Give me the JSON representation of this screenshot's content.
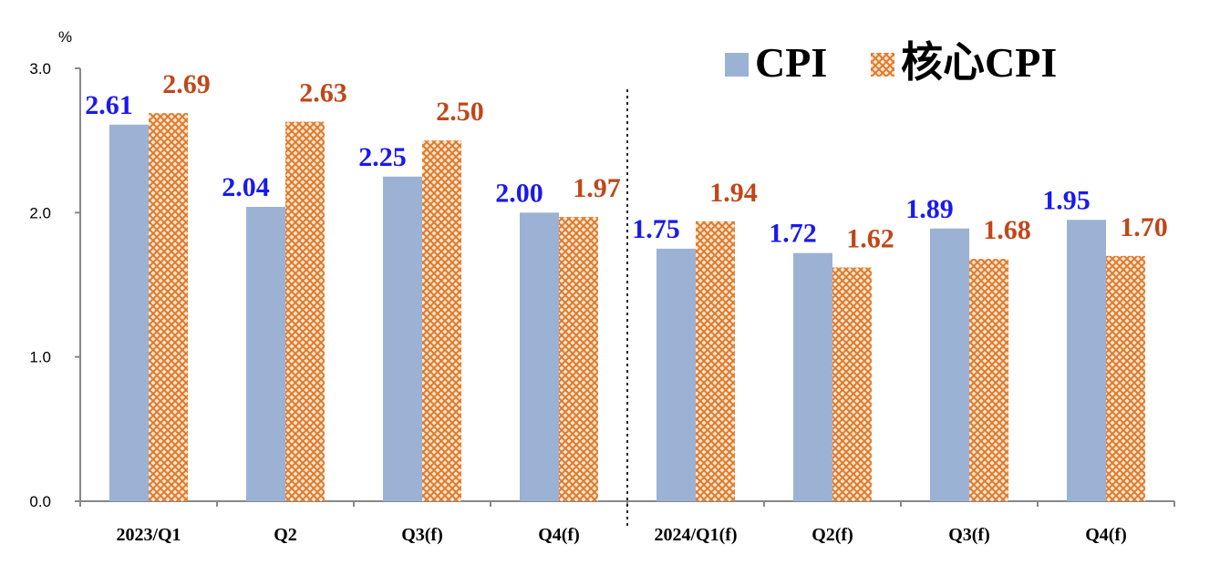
{
  "chart_data": {
    "type": "bar",
    "unit_label": "%",
    "categories": [
      "2023/Q1",
      "Q2",
      "Q3(f)",
      "Q4(f)",
      "2024/Q1(f)",
      "Q2(f)",
      "Q3(f)",
      "Q4(f)"
    ],
    "series": [
      {
        "name": "CPI",
        "values": [
          2.61,
          2.04,
          2.25,
          2.0,
          1.75,
          1.72,
          1.89,
          1.95
        ],
        "value_labels": [
          "2.61",
          "2.04",
          "2.25",
          "2.00",
          "1.75",
          "1.72",
          "1.89",
          "1.95"
        ],
        "color": "#9bb2d4",
        "label_color": "#1a1aee",
        "pattern": "solid"
      },
      {
        "name": "核心CPI",
        "values": [
          2.69,
          2.63,
          2.5,
          1.97,
          1.94,
          1.62,
          1.68,
          1.7
        ],
        "value_labels": [
          "2.69",
          "2.63",
          "2.50",
          "1.97",
          "1.94",
          "1.62",
          "1.68",
          "1.70"
        ],
        "color": "#e07a2a",
        "label_color": "#c0471a",
        "pattern": "crosshatch"
      }
    ],
    "ylim": [
      0,
      3.0
    ],
    "yticks": [
      "0.0",
      "1.0",
      "2.0",
      "3.0"
    ],
    "ytick_values": [
      0,
      1,
      2,
      3
    ],
    "grid": false,
    "legend_position": "top-right",
    "divider_after_category": 3
  }
}
